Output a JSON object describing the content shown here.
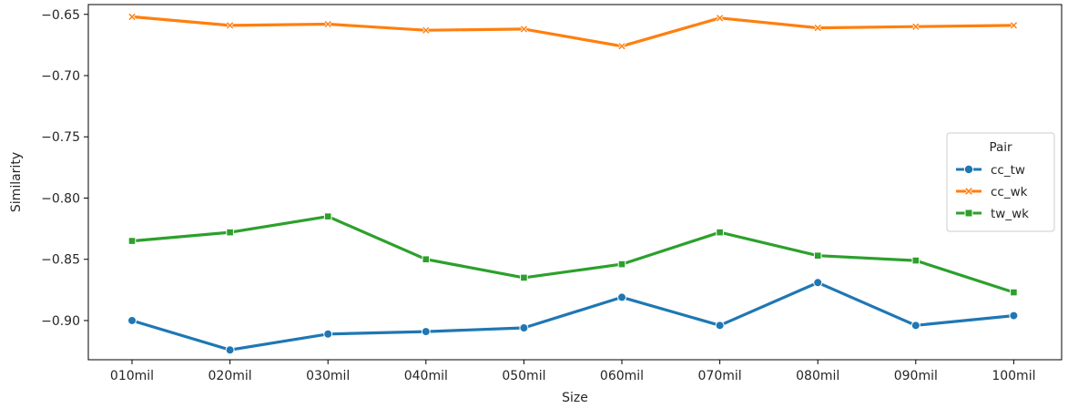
{
  "chart_data": {
    "type": "line",
    "xlabel": "Size",
    "ylabel": "Similarity",
    "categories": [
      "010mil",
      "020mil",
      "030mil",
      "040mil",
      "050mil",
      "060mil",
      "070mil",
      "080mil",
      "090mil",
      "100mil"
    ],
    "yticks": [
      "−0.65",
      "−0.70",
      "−0.75",
      "−0.80",
      "−0.85",
      "−0.90"
    ],
    "ytick_values": [
      -0.65,
      -0.7,
      -0.75,
      -0.8,
      -0.85,
      -0.9
    ],
    "ylim": [
      -0.932,
      -0.642
    ],
    "grid": false,
    "legend": {
      "title": "Pair",
      "placement": "center-right"
    },
    "series": [
      {
        "name": "cc_tw",
        "color": "#1f77b4",
        "marker": "circle",
        "values": [
          -0.9,
          -0.924,
          -0.911,
          -0.909,
          -0.906,
          -0.881,
          -0.904,
          -0.869,
          -0.904,
          -0.896
        ]
      },
      {
        "name": "cc_wk",
        "color": "#ff7f0e",
        "marker": "x",
        "values": [
          -0.652,
          -0.659,
          -0.658,
          -0.663,
          -0.662,
          -0.676,
          -0.653,
          -0.661,
          -0.66,
          -0.659
        ]
      },
      {
        "name": "tw_wk",
        "color": "#2ca02c",
        "marker": "square",
        "values": [
          -0.835,
          -0.828,
          -0.815,
          -0.85,
          -0.865,
          -0.854,
          -0.828,
          -0.847,
          -0.851,
          -0.877
        ]
      }
    ]
  }
}
